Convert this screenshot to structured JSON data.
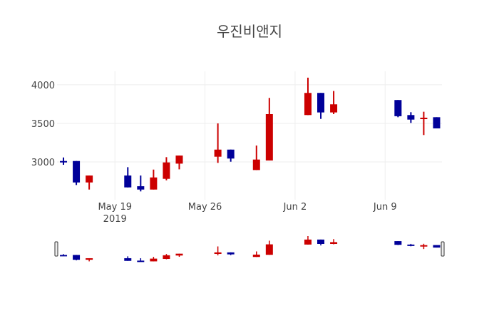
{
  "chart_data": {
    "type": "candlestick",
    "title": "우진비앤지",
    "xlabel": "",
    "ylabel": "",
    "x_range": [
      "2019-05-14T12:00",
      "2019-06-13T10:00"
    ],
    "ylim": [
      2510,
      4175
    ],
    "grid": true,
    "y_ticks": [
      3000,
      3500,
      4000
    ],
    "y_tick_labels": [
      "3000",
      "3500",
      "4000"
    ],
    "x_ticks": [
      "2019-05-19",
      "2019-05-26",
      "2019-06-02",
      "2019-06-09"
    ],
    "x_tick_labels": [
      "May 19",
      "May 26",
      "Jun 2",
      "Jun 9"
    ],
    "x_tick_year_label": "2019",
    "increasing_color": "#cc0000",
    "decreasing_color": "#000099",
    "rangeslider": true,
    "candles": [
      {
        "date": "2019-05-15",
        "open": 3012,
        "high": 3058,
        "low": 2963,
        "close": 3005
      },
      {
        "date": "2019-05-16",
        "open": 3012,
        "high": 3012,
        "low": 2701,
        "close": 2734
      },
      {
        "date": "2019-05-17",
        "open": 2734,
        "high": 2824,
        "low": 2642,
        "close": 2824
      },
      {
        "date": "2019-05-20",
        "open": 2824,
        "high": 2932,
        "low": 2670,
        "close": 2670
      },
      {
        "date": "2019-05-21",
        "open": 2685,
        "high": 2824,
        "low": 2618,
        "close": 2642
      },
      {
        "date": "2019-05-22",
        "open": 2642,
        "high": 2901,
        "low": 2642,
        "close": 2799
      },
      {
        "date": "2019-05-23",
        "open": 2781,
        "high": 3062,
        "low": 2762,
        "close": 2994
      },
      {
        "date": "2019-05-24",
        "open": 2978,
        "high": 3083,
        "low": 2904,
        "close": 3083
      },
      {
        "date": "2019-05-27",
        "open": 3068,
        "high": 3500,
        "low": 2988,
        "close": 3160
      },
      {
        "date": "2019-05-28",
        "open": 3160,
        "high": 3160,
        "low": 3003,
        "close": 3044
      },
      {
        "date": "2019-05-30",
        "open": 2895,
        "high": 3213,
        "low": 2895,
        "close": 3031
      },
      {
        "date": "2019-05-31",
        "open": 3019,
        "high": 3830,
        "low": 3019,
        "close": 3620
      },
      {
        "date": "2019-06-03",
        "open": 3608,
        "high": 4093,
        "low": 3608,
        "close": 3895
      },
      {
        "date": "2019-06-04",
        "open": 3895,
        "high": 3895,
        "low": 3558,
        "close": 3642
      },
      {
        "date": "2019-06-05",
        "open": 3642,
        "high": 3920,
        "low": 3620,
        "close": 3747
      },
      {
        "date": "2019-06-10",
        "open": 3803,
        "high": 3803,
        "low": 3580,
        "close": 3593
      },
      {
        "date": "2019-06-11",
        "open": 3608,
        "high": 3645,
        "low": 3506,
        "close": 3549
      },
      {
        "date": "2019-06-12",
        "open": 3555,
        "high": 3651,
        "low": 3349,
        "close": 3574
      },
      {
        "date": "2019-06-13",
        "open": 3580,
        "high": 3580,
        "low": 3435,
        "close": 3435
      }
    ]
  }
}
